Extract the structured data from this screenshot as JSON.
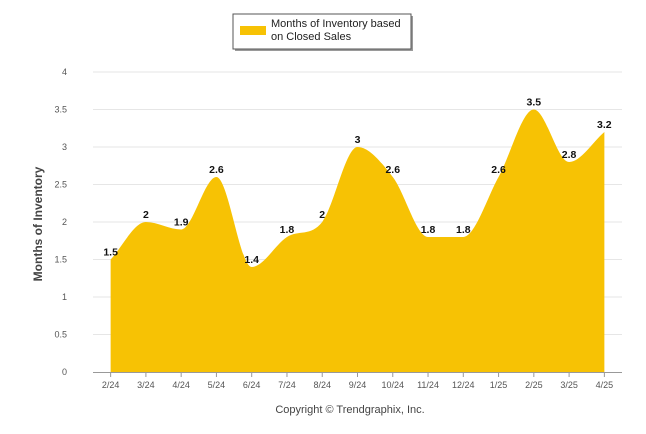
{
  "chart_data": {
    "type": "area",
    "categories": [
      "2/24",
      "3/24",
      "4/24",
      "5/24",
      "6/24",
      "7/24",
      "8/24",
      "9/24",
      "10/24",
      "11/24",
      "12/24",
      "1/25",
      "2/25",
      "3/25",
      "4/25"
    ],
    "series": [
      {
        "name": "Months of Inventory based on Closed Sales",
        "values": [
          1.5,
          2,
          1.9,
          2.6,
          1.4,
          1.8,
          2,
          3,
          2.6,
          1.8,
          1.8,
          2.6,
          3.5,
          2.8,
          3.2
        ],
        "color": "#F7C204"
      }
    ],
    "value_labels": [
      "1.5",
      "2",
      "1.9",
      "2.6",
      "1.4",
      "1.8",
      "2",
      "3",
      "2.6",
      "1.8",
      "1.8",
      "2.6",
      "3.5",
      "2.8",
      "3.2"
    ],
    "y_ticks": [
      "0",
      "0.5",
      "1",
      "1.5",
      "2",
      "2.5",
      "3",
      "3.5",
      "4"
    ],
    "ylabel": "Months of Inventory",
    "xlabel": "",
    "ylim": [
      0,
      4
    ],
    "grid": true,
    "legend": {
      "placement": "top-center",
      "line1": "Months of Inventory based",
      "line2": "on Closed Sales"
    }
  },
  "footer": {
    "copyright": "Copyright © Trendgraphix, Inc."
  }
}
